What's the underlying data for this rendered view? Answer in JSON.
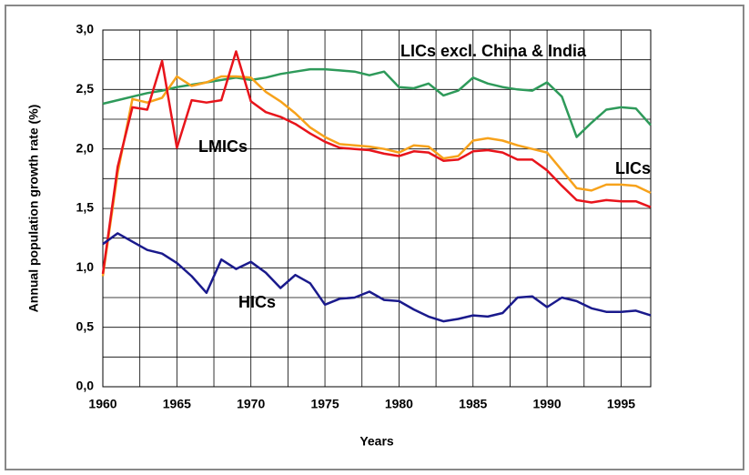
{
  "chart_data": {
    "type": "line",
    "x_label": "Years",
    "y_label": "Annual population growth rate (%)",
    "x": [
      1960,
      1961,
      1962,
      1963,
      1964,
      1965,
      1966,
      1967,
      1968,
      1969,
      1970,
      1971,
      1972,
      1973,
      1974,
      1975,
      1976,
      1977,
      1978,
      1979,
      1980,
      1981,
      1982,
      1983,
      1984,
      1985,
      1986,
      1987,
      1988,
      1989,
      1990,
      1991,
      1992,
      1993,
      1994,
      1995,
      1996,
      1997
    ],
    "series": [
      {
        "name": "LICs excl. China & India",
        "color": "#2e9a5a",
        "values": [
          2.38,
          2.41,
          2.44,
          2.47,
          2.49,
          2.52,
          2.54,
          2.56,
          2.58,
          2.6,
          2.58,
          2.6,
          2.63,
          2.65,
          2.67,
          2.67,
          2.66,
          2.65,
          2.62,
          2.65,
          2.52,
          2.51,
          2.55,
          2.45,
          2.49,
          2.6,
          2.55,
          2.52,
          2.5,
          2.49,
          2.56,
          2.44,
          2.1,
          2.22,
          2.33,
          2.35,
          2.34,
          2.2
        ]
      },
      {
        "name": "LICs",
        "color": "#f7a21b",
        "values": [
          0.93,
          1.8,
          2.42,
          2.39,
          2.43,
          2.61,
          2.53,
          2.56,
          2.61,
          2.61,
          2.6,
          2.48,
          2.4,
          2.3,
          2.18,
          2.1,
          2.04,
          2.03,
          2.02,
          2.0,
          1.97,
          2.03,
          2.02,
          1.92,
          1.94,
          2.07,
          2.09,
          2.07,
          2.03,
          2.0,
          1.97,
          1.82,
          1.67,
          1.65,
          1.7,
          1.7,
          1.69,
          1.63
        ]
      },
      {
        "name": "LMICs",
        "color": "#e8141b",
        "values": [
          0.95,
          1.85,
          2.35,
          2.33,
          2.74,
          2.01,
          2.41,
          2.39,
          2.41,
          2.82,
          2.4,
          2.31,
          2.27,
          2.21,
          2.13,
          2.06,
          2.01,
          2.0,
          1.99,
          1.96,
          1.94,
          1.98,
          1.97,
          1.9,
          1.91,
          1.98,
          1.99,
          1.97,
          1.91,
          1.91,
          1.82,
          1.69,
          1.57,
          1.55,
          1.57,
          1.56,
          1.56,
          1.51
        ]
      },
      {
        "name": "HICs",
        "color": "#1a1a8c",
        "values": [
          1.2,
          1.29,
          1.22,
          1.15,
          1.12,
          1.04,
          0.93,
          0.79,
          1.07,
          0.99,
          1.05,
          0.96,
          0.83,
          0.94,
          0.87,
          0.69,
          0.74,
          0.75,
          0.8,
          0.73,
          0.72,
          0.65,
          0.59,
          0.55,
          0.57,
          0.6,
          0.59,
          0.62,
          0.75,
          0.76,
          0.67,
          0.75,
          0.72,
          0.66,
          0.63,
          0.63,
          0.64,
          0.6
        ]
      }
    ],
    "xlim": [
      1960,
      1997
    ],
    "xticks": [
      1960,
      1965,
      1970,
      1975,
      1980,
      1985,
      1990,
      1995
    ],
    "x_minor_ticks": [
      1962.5,
      1967.5,
      1972.5,
      1977.5,
      1982.5,
      1987.5,
      1992.5
    ],
    "ylim": [
      0,
      3
    ],
    "yticks": [
      {
        "value": 0,
        "label": "0,0"
      },
      {
        "value": 0.5,
        "label": "0,5"
      },
      {
        "value": 1,
        "label": "1,0"
      },
      {
        "value": 1.5,
        "label": "1,5"
      },
      {
        "value": 2,
        "label": "2,0"
      },
      {
        "value": 2.5,
        "label": "2,5"
      },
      {
        "value": 3,
        "label": "3,0"
      }
    ],
    "y_minor_ticks": [
      0.25,
      0.75,
      1.25,
      1.75,
      2.25,
      2.75
    ],
    "grid": true
  }
}
